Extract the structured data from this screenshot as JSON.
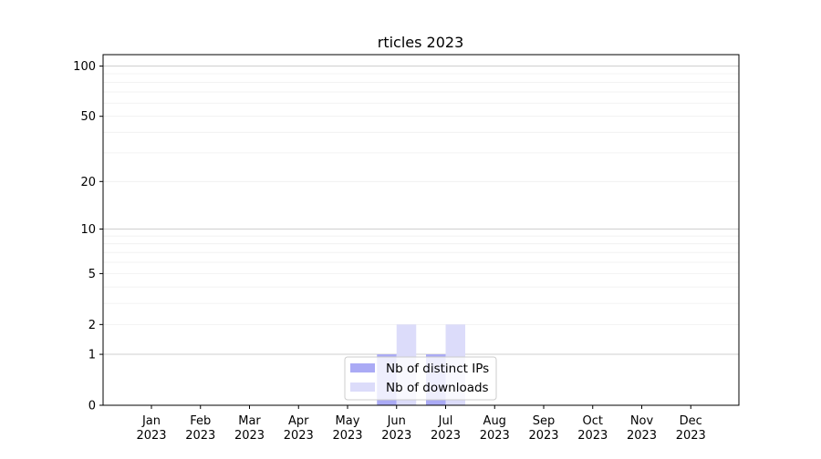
{
  "chart_data": {
    "type": "bar",
    "title": "rticles 2023",
    "xlabel": "",
    "ylabel": "",
    "yscale": "log(1+y)",
    "ylim": [
      0,
      117
    ],
    "yticks": [
      0,
      1,
      2,
      5,
      10,
      20,
      50,
      100
    ],
    "grid": true,
    "categories": [
      "Jan\n2023",
      "Feb\n2023",
      "Mar\n2023",
      "Apr\n2023",
      "May\n2023",
      "Jun\n2023",
      "Jul\n2023",
      "Aug\n2023",
      "Sep\n2023",
      "Oct\n2023",
      "Nov\n2023",
      "Dec\n2023"
    ],
    "series": [
      {
        "name": "Nb of distinct IPs",
        "color": "#aaaaf5",
        "values": [
          0,
          0,
          0,
          0,
          0,
          1,
          1,
          0,
          0,
          0,
          0,
          0
        ]
      },
      {
        "name": "Nb of downloads",
        "color": "#dcdcfa",
        "values": [
          0,
          0,
          0,
          0,
          0,
          2,
          2,
          0,
          0,
          0,
          0,
          0
        ]
      }
    ],
    "legend": "bottom-center"
  }
}
